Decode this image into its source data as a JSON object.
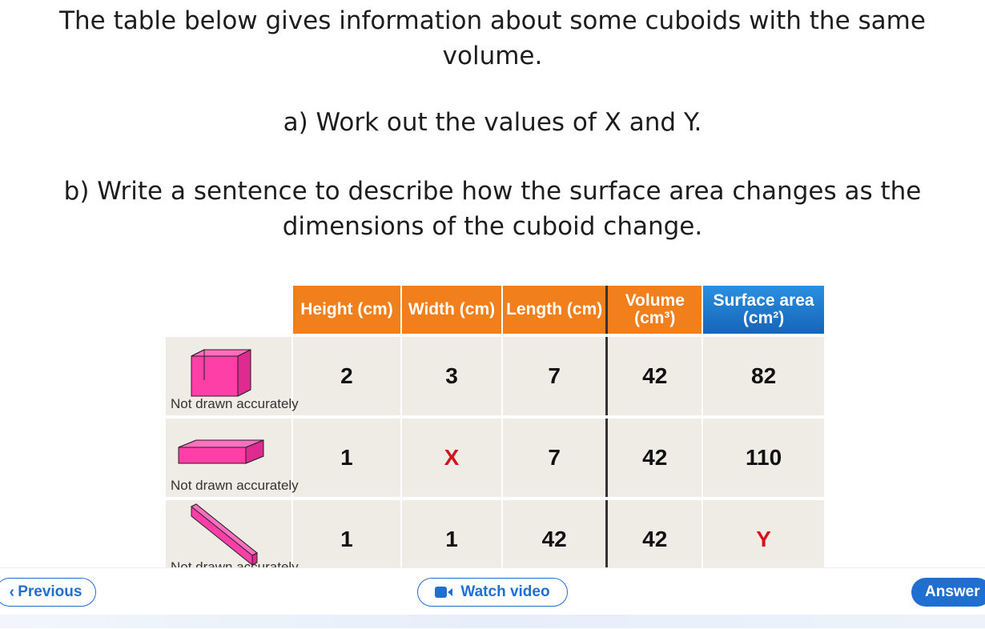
{
  "question": {
    "intro": "The table below gives information about some cuboids with the same volume.",
    "part_a": "a) Work out the values of X and Y.",
    "part_b": "b) Write a sentence to describe how the surface area changes as the dimensions of the cuboid change."
  },
  "table": {
    "headers": {
      "height": "Height (cm)",
      "width": "Width (cm)",
      "length": "Length (cm)",
      "volume_line1": "Volume",
      "volume_line2": "(cm³)",
      "surface_line1": "Surface area",
      "surface_line2": "(cm²)"
    },
    "not_drawn": "Not drawn accurately",
    "rows": [
      {
        "height": "2",
        "width": "3",
        "length": "7",
        "volume": "42",
        "surface_area": "82"
      },
      {
        "height": "1",
        "width": "X",
        "length": "7",
        "volume": "42",
        "surface_area": "110"
      },
      {
        "height": "1",
        "width": "1",
        "length": "42",
        "volume": "42",
        "surface_area": "Y"
      }
    ]
  },
  "nav": {
    "previous": "Previous",
    "watch_video": "Watch video",
    "answer": "Answer"
  },
  "colors": {
    "header_orange": "#f07f1c",
    "header_blue": "#1565b8",
    "unknown_red": "#d4141b",
    "cuboid_pink": "#ff3fa8",
    "button_blue": "#1f6fd1"
  },
  "icons": {
    "previous": "chevron-left-icon",
    "video": "video-camera-icon"
  }
}
